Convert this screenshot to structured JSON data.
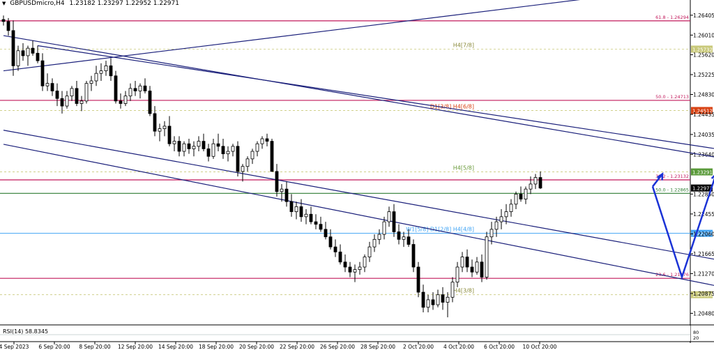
{
  "header": {
    "symbol": "GBPUSDmicro,H4",
    "ohlc": "1.23182 1.23297 1.22952 1.22971"
  },
  "rsi": {
    "label": "RSI(14) 58.8345",
    "value": 58.8345
  },
  "colors": {
    "candle_up": "#ffffff",
    "candle_down": "#000000",
    "wick": "#000000",
    "channel": "#1a1f7a",
    "fib": "#c2185b",
    "green": "#2e7d32",
    "blue_level": "#42a5f5",
    "murrey": "#c9c97a",
    "arrow": "#1b33d6"
  },
  "chart_data": {
    "type": "candlestick",
    "title": "GBPUSDmicro,H4",
    "ylim": [
      1.2025,
      1.2668
    ],
    "y_ticks": [
      "1.26405",
      "1.26010",
      "1.25620",
      "1.25225",
      "1.24830",
      "1.24435",
      "1.24035",
      "1.23640",
      "1.22850",
      "1.22455",
      "1.22060",
      "1.21665",
      "1.21270",
      "1.20875",
      "1.20480"
    ],
    "y_tick_values": [
      1.26405,
      1.2601,
      1.2562,
      1.25225,
      1.2483,
      1.24435,
      1.24035,
      1.2364,
      1.2285,
      1.22455,
      1.2206,
      1.21665,
      1.2127,
      1.20875,
      1.2048
    ],
    "x_ticks": [
      "4 Sep 2023",
      "6 Sep 20:00",
      "8 Sep 20:00",
      "12 Sep 20:00",
      "14 Sep 20:00",
      "18 Sep 20:00",
      "20 Sep 20:00",
      "22 Sep 20:00",
      "26 Sep 20:00",
      "28 Sep 20:00",
      "2 Oct 20:00",
      "4 Oct 20:00",
      "6 Oct 20:00",
      "10 Oct 20:00"
    ],
    "levels": [
      {
        "label": "61.8 - 1.26294",
        "price": 1.26294,
        "tag": "",
        "style": "fib"
      },
      {
        "label": "H4[7/8]",
        "price": 1.25732,
        "tag": "1.25732",
        "style": "murrey"
      },
      {
        "label": "50.0 - 1.24713",
        "price": 1.24713,
        "tag": "",
        "style": "fib"
      },
      {
        "label": "D1[3/8] H4[6/8]",
        "price": 1.24512,
        "tag": "1.24512",
        "style": "murrey_red"
      },
      {
        "label": "H4[5/8]",
        "price": 1.23291,
        "tag": "1.23291",
        "style": "murrey_green"
      },
      {
        "label": "38.2 - 1.23132",
        "price": 1.23132,
        "tag": "",
        "style": "fib"
      },
      {
        "label": "50.0 - 1.22865",
        "price": 1.22865,
        "tag": "",
        "style": "green"
      },
      {
        "label": "W1[5/8] D1[2/8] H4[4/8]",
        "price": 1.2207,
        "tag": "1.22070",
        "style": "blue"
      },
      {
        "label": "23.6 - 1.21176",
        "price": 1.21176,
        "tag": "",
        "style": "fib"
      },
      {
        "label": "H4[3/8]",
        "price": 1.2085,
        "tag": "1.20850",
        "style": "murrey"
      }
    ],
    "current_price": {
      "price": 1.22971,
      "tag": "1.22971"
    },
    "candles": [
      [
        1.2632,
        1.264,
        1.262,
        1.2628
      ],
      [
        1.2628,
        1.2635,
        1.26,
        1.261
      ],
      [
        1.261,
        1.263,
        1.252,
        1.254
      ],
      [
        1.254,
        1.258,
        1.253,
        1.257
      ],
      [
        1.257,
        1.2585,
        1.255,
        1.256
      ],
      [
        1.256,
        1.258,
        1.254,
        1.2575
      ],
      [
        1.2575,
        1.259,
        1.256,
        1.2565
      ],
      [
        1.2565,
        1.258,
        1.2545,
        1.255
      ],
      [
        1.255,
        1.2565,
        1.249,
        1.25
      ],
      [
        1.25,
        1.2525,
        1.249,
        1.2505
      ],
      [
        1.2505,
        1.2515,
        1.248,
        1.249
      ],
      [
        1.249,
        1.2505,
        1.246,
        1.2475
      ],
      [
        1.2475,
        1.249,
        1.2445,
        1.246
      ],
      [
        1.246,
        1.249,
        1.2455,
        1.248
      ],
      [
        1.248,
        1.25,
        1.247,
        1.2495
      ],
      [
        1.2495,
        1.251,
        1.246,
        1.2465
      ],
      [
        1.2465,
        1.248,
        1.245,
        1.247
      ],
      [
        1.247,
        1.251,
        1.2465,
        1.2505
      ],
      [
        1.2505,
        1.252,
        1.249,
        1.251
      ],
      [
        1.251,
        1.254,
        1.25,
        1.2525
      ],
      [
        1.2525,
        1.2545,
        1.251,
        1.253
      ],
      [
        1.253,
        1.255,
        1.252,
        1.254
      ],
      [
        1.254,
        1.2555,
        1.251,
        1.252
      ],
      [
        1.252,
        1.253,
        1.2465,
        1.247
      ],
      [
        1.247,
        1.2485,
        1.2455,
        1.2465
      ],
      [
        1.2465,
        1.249,
        1.246,
        1.248
      ],
      [
        1.248,
        1.2505,
        1.247,
        1.2495
      ],
      [
        1.2495,
        1.251,
        1.248,
        1.249
      ],
      [
        1.249,
        1.2505,
        1.2475,
        1.25
      ],
      [
        1.25,
        1.2515,
        1.2485,
        1.249
      ],
      [
        1.249,
        1.25,
        1.244,
        1.2445
      ],
      [
        1.2445,
        1.246,
        1.24,
        1.241
      ],
      [
        1.241,
        1.2425,
        1.239,
        1.2415
      ],
      [
        1.2415,
        1.243,
        1.24,
        1.242
      ],
      [
        1.242,
        1.244,
        1.238,
        1.2385
      ],
      [
        1.2385,
        1.24,
        1.237,
        1.239
      ],
      [
        1.239,
        1.24,
        1.236,
        1.237
      ],
      [
        1.237,
        1.239,
        1.236,
        1.2385
      ],
      [
        1.2385,
        1.2395,
        1.2365,
        1.2375
      ],
      [
        1.2375,
        1.239,
        1.236,
        1.238
      ],
      [
        1.238,
        1.24,
        1.237,
        1.239
      ],
      [
        1.239,
        1.2405,
        1.237,
        1.2375
      ],
      [
        1.2375,
        1.2385,
        1.235,
        1.236
      ],
      [
        1.236,
        1.2395,
        1.2355,
        1.2385
      ],
      [
        1.2385,
        1.2405,
        1.237,
        1.238
      ],
      [
        1.238,
        1.2395,
        1.2355,
        1.2365
      ],
      [
        1.2365,
        1.238,
        1.235,
        1.237
      ],
      [
        1.237,
        1.2385,
        1.236,
        1.238
      ],
      [
        1.238,
        1.239,
        1.232,
        1.233
      ],
      [
        1.233,
        1.2345,
        1.231,
        1.234
      ],
      [
        1.234,
        1.236,
        1.233,
        1.2355
      ],
      [
        1.2355,
        1.2375,
        1.2345,
        1.237
      ],
      [
        1.237,
        1.239,
        1.236,
        1.2385
      ],
      [
        1.2385,
        1.24,
        1.2375,
        1.2395
      ],
      [
        1.2395,
        1.2405,
        1.238,
        1.239
      ],
      [
        1.239,
        1.2395,
        1.233,
        1.233
      ],
      [
        1.233,
        1.2345,
        1.228,
        1.229
      ],
      [
        1.229,
        1.2305,
        1.227,
        1.2295
      ],
      [
        1.2295,
        1.231,
        1.226,
        1.227
      ],
      [
        1.227,
        1.2285,
        1.224,
        1.225
      ],
      [
        1.225,
        1.227,
        1.2235,
        1.226
      ],
      [
        1.226,
        1.2275,
        1.223,
        1.224
      ],
      [
        1.224,
        1.2255,
        1.2225,
        1.2245
      ],
      [
        1.2245,
        1.226,
        1.2225,
        1.223
      ],
      [
        1.223,
        1.2245,
        1.2215,
        1.2225
      ],
      [
        1.2225,
        1.224,
        1.221,
        1.2215
      ],
      [
        1.2215,
        1.223,
        1.2195,
        1.22
      ],
      [
        1.22,
        1.2215,
        1.2175,
        1.218
      ],
      [
        1.218,
        1.2195,
        1.216,
        1.217
      ],
      [
        1.217,
        1.2185,
        1.2145,
        1.215
      ],
      [
        1.215,
        1.2165,
        1.213,
        1.214
      ],
      [
        1.214,
        1.215,
        1.212,
        1.213
      ],
      [
        1.213,
        1.2145,
        1.211,
        1.2135
      ],
      [
        1.2135,
        1.215,
        1.2125,
        1.214
      ],
      [
        1.214,
        1.2165,
        1.213,
        1.216
      ],
      [
        1.216,
        1.219,
        1.215,
        1.218
      ],
      [
        1.218,
        1.2205,
        1.217,
        1.2195
      ],
      [
        1.2195,
        1.2215,
        1.2185,
        1.2205
      ],
      [
        1.2205,
        1.224,
        1.2195,
        1.223
      ],
      [
        1.223,
        1.226,
        1.222,
        1.225
      ],
      [
        1.225,
        1.2265,
        1.22,
        1.221
      ],
      [
        1.221,
        1.2225,
        1.2185,
        1.2195
      ],
      [
        1.2195,
        1.221,
        1.218,
        1.22
      ],
      [
        1.22,
        1.2215,
        1.218,
        1.2185
      ],
      [
        1.2185,
        1.2195,
        1.213,
        1.214
      ],
      [
        1.214,
        1.215,
        1.208,
        1.209
      ],
      [
        1.209,
        1.2105,
        1.205,
        1.206
      ],
      [
        1.206,
        1.2085,
        1.205,
        1.2075
      ],
      [
        1.2075,
        1.209,
        1.2055,
        1.2065
      ],
      [
        1.2065,
        1.2095,
        1.206,
        1.2085
      ],
      [
        1.2085,
        1.21,
        1.2055,
        1.207
      ],
      [
        1.207,
        1.209,
        1.204,
        1.208
      ],
      [
        1.208,
        1.212,
        1.207,
        1.211
      ],
      [
        1.211,
        1.215,
        1.21,
        1.214
      ],
      [
        1.214,
        1.217,
        1.213,
        1.216
      ],
      [
        1.216,
        1.2175,
        1.213,
        1.214
      ],
      [
        1.214,
        1.2155,
        1.212,
        1.213
      ],
      [
        1.213,
        1.216,
        1.2125,
        1.215
      ],
      [
        1.215,
        1.2165,
        1.211,
        1.212
      ],
      [
        1.212,
        1.221,
        1.2115,
        1.22
      ],
      [
        1.22,
        1.223,
        1.2185,
        1.2215
      ],
      [
        1.2215,
        1.224,
        1.22,
        1.223
      ],
      [
        1.223,
        1.2255,
        1.2215,
        1.224
      ],
      [
        1.224,
        1.2265,
        1.2225,
        1.225
      ],
      [
        1.225,
        1.2275,
        1.224,
        1.2265
      ],
      [
        1.2265,
        1.229,
        1.2255,
        1.2285
      ],
      [
        1.2285,
        1.23,
        1.227,
        1.2275
      ],
      [
        1.2275,
        1.23,
        1.2265,
        1.2295
      ],
      [
        1.2295,
        1.232,
        1.2285,
        1.2305
      ],
      [
        1.2305,
        1.2325,
        1.2295,
        1.2318
      ],
      [
        1.2318,
        1.233,
        1.2295,
        1.2297
      ]
    ],
    "channels": [
      {
        "from": [
          0,
          1.253
        ],
        "to": [
          121,
          1.2675
        ]
      },
      {
        "from": [
          7,
          1.258
        ],
        "to": [
          163,
          1.235
        ]
      },
      {
        "from": [
          0,
          1.2412
        ],
        "to": [
          163,
          1.2125
        ]
      },
      {
        "from": [
          0,
          1.2384
        ],
        "to": [
          163,
          1.207
        ]
      },
      {
        "from": [
          0,
          1.26
        ],
        "to": [
          163,
          1.233
        ]
      }
    ],
    "arrow": {
      "points": [
        [
          133,
          1.23
        ],
        [
          139,
          1.212
        ],
        [
          146,
          1.2325
        ]
      ]
    },
    "rsi_value": 58.8345
  }
}
